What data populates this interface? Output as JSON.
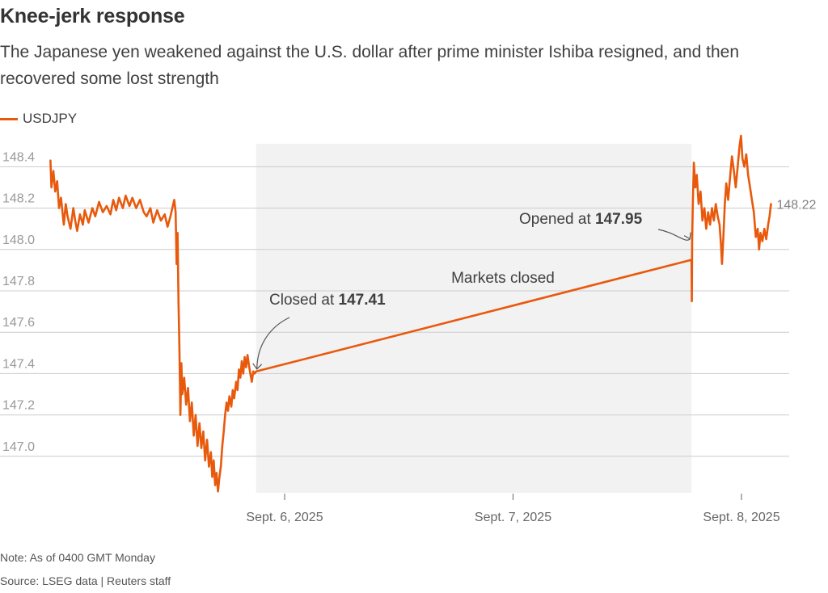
{
  "title": "Knee-jerk response",
  "subtitle": "The Japanese yen weakened against the U.S. dollar after prime minister Ishiba resigned, and then recovered some lost strength",
  "legend": {
    "label": "USDJPY",
    "color": "#e8590c"
  },
  "note": "Note: As of 0400 GMT Monday",
  "source": "Source: LSEG data | Reuters staff",
  "colors": {
    "line": "#e8590c",
    "grid": "#cccccc",
    "shade": "#f2f2f2",
    "tick_text": "#999999",
    "text": "#404040"
  },
  "chart_data": {
    "type": "line",
    "title": "Knee-jerk response",
    "xlabel": "",
    "ylabel": "",
    "ylim": [
      146.8,
      148.55
    ],
    "xlim_hours": [
      -26.8,
      57.8
    ],
    "y_ticks": [
      147.0,
      147.2,
      147.4,
      147.6,
      147.8,
      148.0,
      148.2,
      148.4
    ],
    "y_tick_labels": [
      "147.0",
      "147.2",
      "147.4",
      "147.6",
      "147.8",
      "148.0",
      "148.2",
      "148.4"
    ],
    "x_ticks_hours": [
      0,
      24,
      48
    ],
    "x_tick_labels": [
      "Sept. 6, 2025",
      "Sept. 7, 2025",
      "Sept. 8, 2025"
    ],
    "x_unit": "hours from Sept. 6, 2025 00:00",
    "shaded_region": {
      "start_hours": -3,
      "end_hours": 42.75,
      "label": "Markets closed"
    },
    "series": [
      {
        "name": "USDJPY",
        "points": [
          [
            -24.6,
            148.43
          ],
          [
            -24.5,
            148.3
          ],
          [
            -24.3,
            148.38
          ],
          [
            -24.1,
            148.28
          ],
          [
            -23.9,
            148.33
          ],
          [
            -23.7,
            148.2
          ],
          [
            -23.5,
            148.25
          ],
          [
            -23.2,
            148.12
          ],
          [
            -23.0,
            148.22
          ],
          [
            -22.8,
            148.16
          ],
          [
            -22.5,
            148.1
          ],
          [
            -22.2,
            148.2
          ],
          [
            -22.0,
            148.14
          ],
          [
            -21.8,
            148.09
          ],
          [
            -21.5,
            148.17
          ],
          [
            -21.2,
            148.12
          ],
          [
            -21.0,
            148.19
          ],
          [
            -20.6,
            148.13
          ],
          [
            -20.2,
            148.2
          ],
          [
            -19.9,
            148.16
          ],
          [
            -19.5,
            148.23
          ],
          [
            -19.1,
            148.18
          ],
          [
            -18.7,
            148.21
          ],
          [
            -18.3,
            148.17
          ],
          [
            -18.0,
            148.24
          ],
          [
            -17.7,
            148.19
          ],
          [
            -17.4,
            148.25
          ],
          [
            -17.0,
            148.2
          ],
          [
            -16.7,
            148.26
          ],
          [
            -16.3,
            148.21
          ],
          [
            -16.0,
            148.25
          ],
          [
            -15.6,
            148.2
          ],
          [
            -15.2,
            148.24
          ],
          [
            -14.8,
            148.18
          ],
          [
            -14.5,
            148.16
          ],
          [
            -14.1,
            148.2
          ],
          [
            -13.8,
            148.13
          ],
          [
            -13.4,
            148.19
          ],
          [
            -13.0,
            148.14
          ],
          [
            -12.6,
            148.17
          ],
          [
            -12.3,
            148.11
          ],
          [
            -12.0,
            148.16
          ],
          [
            -11.8,
            148.2
          ],
          [
            -11.6,
            148.24
          ],
          [
            -11.45,
            148.18
          ],
          [
            -11.35,
            147.93
          ],
          [
            -11.25,
            148.08
          ],
          [
            -11.15,
            147.74
          ],
          [
            -11.05,
            147.52
          ],
          [
            -10.95,
            147.2
          ],
          [
            -10.85,
            147.45
          ],
          [
            -10.75,
            147.3
          ],
          [
            -10.55,
            147.38
          ],
          [
            -10.35,
            147.25
          ],
          [
            -10.15,
            147.33
          ],
          [
            -9.95,
            147.17
          ],
          [
            -9.75,
            147.26
          ],
          [
            -9.55,
            147.1
          ],
          [
            -9.35,
            147.2
          ],
          [
            -9.15,
            147.05
          ],
          [
            -8.95,
            147.16
          ],
          [
            -8.75,
            147.04
          ],
          [
            -8.55,
            147.12
          ],
          [
            -8.35,
            146.98
          ],
          [
            -8.15,
            147.08
          ],
          [
            -7.95,
            146.95
          ],
          [
            -7.75,
            147.02
          ],
          [
            -7.6,
            146.9
          ],
          [
            -7.45,
            146.98
          ],
          [
            -7.3,
            146.86
          ],
          [
            -7.15,
            146.92
          ],
          [
            -7.0,
            146.83
          ],
          [
            -6.85,
            146.9
          ],
          [
            -6.7,
            146.95
          ],
          [
            -6.55,
            147.05
          ],
          [
            -6.4,
            147.12
          ],
          [
            -6.25,
            147.2
          ],
          [
            -6.1,
            147.26
          ],
          [
            -5.95,
            147.22
          ],
          [
            -5.8,
            147.29
          ],
          [
            -5.6,
            147.24
          ],
          [
            -5.45,
            147.32
          ],
          [
            -5.3,
            147.28
          ],
          [
            -5.1,
            147.36
          ],
          [
            -4.95,
            147.32
          ],
          [
            -4.8,
            147.42
          ],
          [
            -4.65,
            147.38
          ],
          [
            -4.5,
            147.46
          ],
          [
            -4.35,
            147.4
          ],
          [
            -4.2,
            147.48
          ],
          [
            -4.05,
            147.43
          ],
          [
            -3.9,
            147.49
          ],
          [
            -3.75,
            147.44
          ],
          [
            -3.6,
            147.4
          ],
          [
            -3.45,
            147.36
          ],
          [
            -3.3,
            147.41
          ],
          [
            -3.15,
            147.4
          ],
          [
            -3.0,
            147.41
          ],
          [
            42.75,
            147.95
          ],
          [
            42.78,
            147.75
          ],
          [
            42.82,
            148.05
          ],
          [
            42.9,
            148.25
          ],
          [
            43.0,
            148.42
          ],
          [
            43.15,
            148.3
          ],
          [
            43.3,
            148.36
          ],
          [
            43.5,
            148.22
          ],
          [
            43.7,
            148.28
          ],
          [
            43.9,
            148.14
          ],
          [
            44.1,
            148.2
          ],
          [
            44.3,
            148.1
          ],
          [
            44.5,
            148.18
          ],
          [
            44.7,
            148.12
          ],
          [
            44.9,
            148.2
          ],
          [
            45.1,
            148.14
          ],
          [
            45.3,
            148.22
          ],
          [
            45.5,
            148.16
          ],
          [
            45.7,
            148.12
          ],
          [
            45.85,
            148.02
          ],
          [
            45.95,
            147.93
          ],
          [
            46.1,
            148.06
          ],
          [
            46.25,
            148.22
          ],
          [
            46.4,
            148.32
          ],
          [
            46.6,
            148.24
          ],
          [
            46.8,
            148.35
          ],
          [
            47.0,
            148.45
          ],
          [
            47.2,
            148.38
          ],
          [
            47.4,
            148.3
          ],
          [
            47.6,
            148.4
          ],
          [
            47.8,
            148.5
          ],
          [
            47.95,
            148.55
          ],
          [
            48.1,
            148.44
          ],
          [
            48.3,
            148.4
          ],
          [
            48.5,
            148.46
          ],
          [
            48.7,
            148.36
          ],
          [
            48.9,
            148.3
          ],
          [
            49.1,
            148.24
          ],
          [
            49.3,
            148.18
          ],
          [
            49.5,
            148.06
          ],
          [
            49.7,
            148.1
          ],
          [
            49.85,
            148.0
          ],
          [
            50.0,
            148.08
          ],
          [
            50.2,
            148.04
          ],
          [
            50.4,
            148.1
          ],
          [
            50.6,
            148.05
          ],
          [
            50.8,
            148.12
          ],
          [
            50.95,
            148.16
          ],
          [
            51.1,
            148.22
          ]
        ]
      }
    ],
    "annotations": [
      {
        "text_prefix": "Closed at ",
        "value": "147.41",
        "x_hours": -3.0,
        "y": 147.41
      },
      {
        "text_prefix": "Opened at ",
        "value": "147.95",
        "x_hours": 42.75,
        "y": 147.95
      },
      {
        "text": "148.22",
        "x_hours": 51.1,
        "y": 148.22
      }
    ]
  }
}
